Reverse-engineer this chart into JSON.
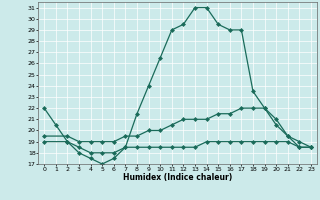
{
  "xlabel": "Humidex (Indice chaleur)",
  "bg_color": "#cceaea",
  "line_color": "#1a6b5a",
  "grid_color": "#ffffff",
  "xlim": [
    -0.5,
    23.5
  ],
  "ylim": [
    17,
    31.5
  ],
  "yticks": [
    17,
    18,
    19,
    20,
    21,
    22,
    23,
    24,
    25,
    26,
    27,
    28,
    29,
    30,
    31
  ],
  "xticks": [
    0,
    1,
    2,
    3,
    4,
    5,
    6,
    7,
    8,
    9,
    10,
    11,
    12,
    13,
    14,
    15,
    16,
    17,
    18,
    19,
    20,
    21,
    22,
    23
  ],
  "line1_x": [
    0,
    1,
    2,
    3,
    4,
    5,
    6,
    7,
    8,
    9,
    10,
    11,
    12,
    13,
    14,
    15,
    16,
    17,
    18,
    19,
    20,
    21,
    22,
    23
  ],
  "line1_y": [
    22,
    20.5,
    19,
    18,
    17.5,
    17,
    17.5,
    18.5,
    21.5,
    24,
    26.5,
    29,
    29.5,
    31,
    31,
    29.5,
    29,
    29,
    23.5,
    22,
    21,
    19.5,
    19,
    18.5
  ],
  "line2_x": [
    0,
    2,
    3,
    4,
    5,
    6,
    7,
    8,
    9,
    10,
    11,
    12,
    13,
    14,
    15,
    16,
    17,
    18,
    19,
    20,
    21,
    22,
    23
  ],
  "line2_y": [
    19.5,
    19.5,
    19,
    19,
    19,
    19,
    19.5,
    19.5,
    20,
    20,
    20.5,
    21,
    21,
    21,
    21.5,
    21.5,
    22,
    22,
    22,
    20.5,
    19.5,
    18.5,
    18.5
  ],
  "line3_x": [
    0,
    2,
    3,
    4,
    5,
    6,
    7,
    8,
    9,
    10,
    11,
    12,
    13,
    14,
    15,
    16,
    17,
    18,
    19,
    20,
    21,
    22,
    23
  ],
  "line3_y": [
    19,
    19,
    18.5,
    18,
    18,
    18,
    18.5,
    18.5,
    18.5,
    18.5,
    18.5,
    18.5,
    18.5,
    19,
    19,
    19,
    19,
    19,
    19,
    19,
    19,
    18.5,
    18.5
  ]
}
